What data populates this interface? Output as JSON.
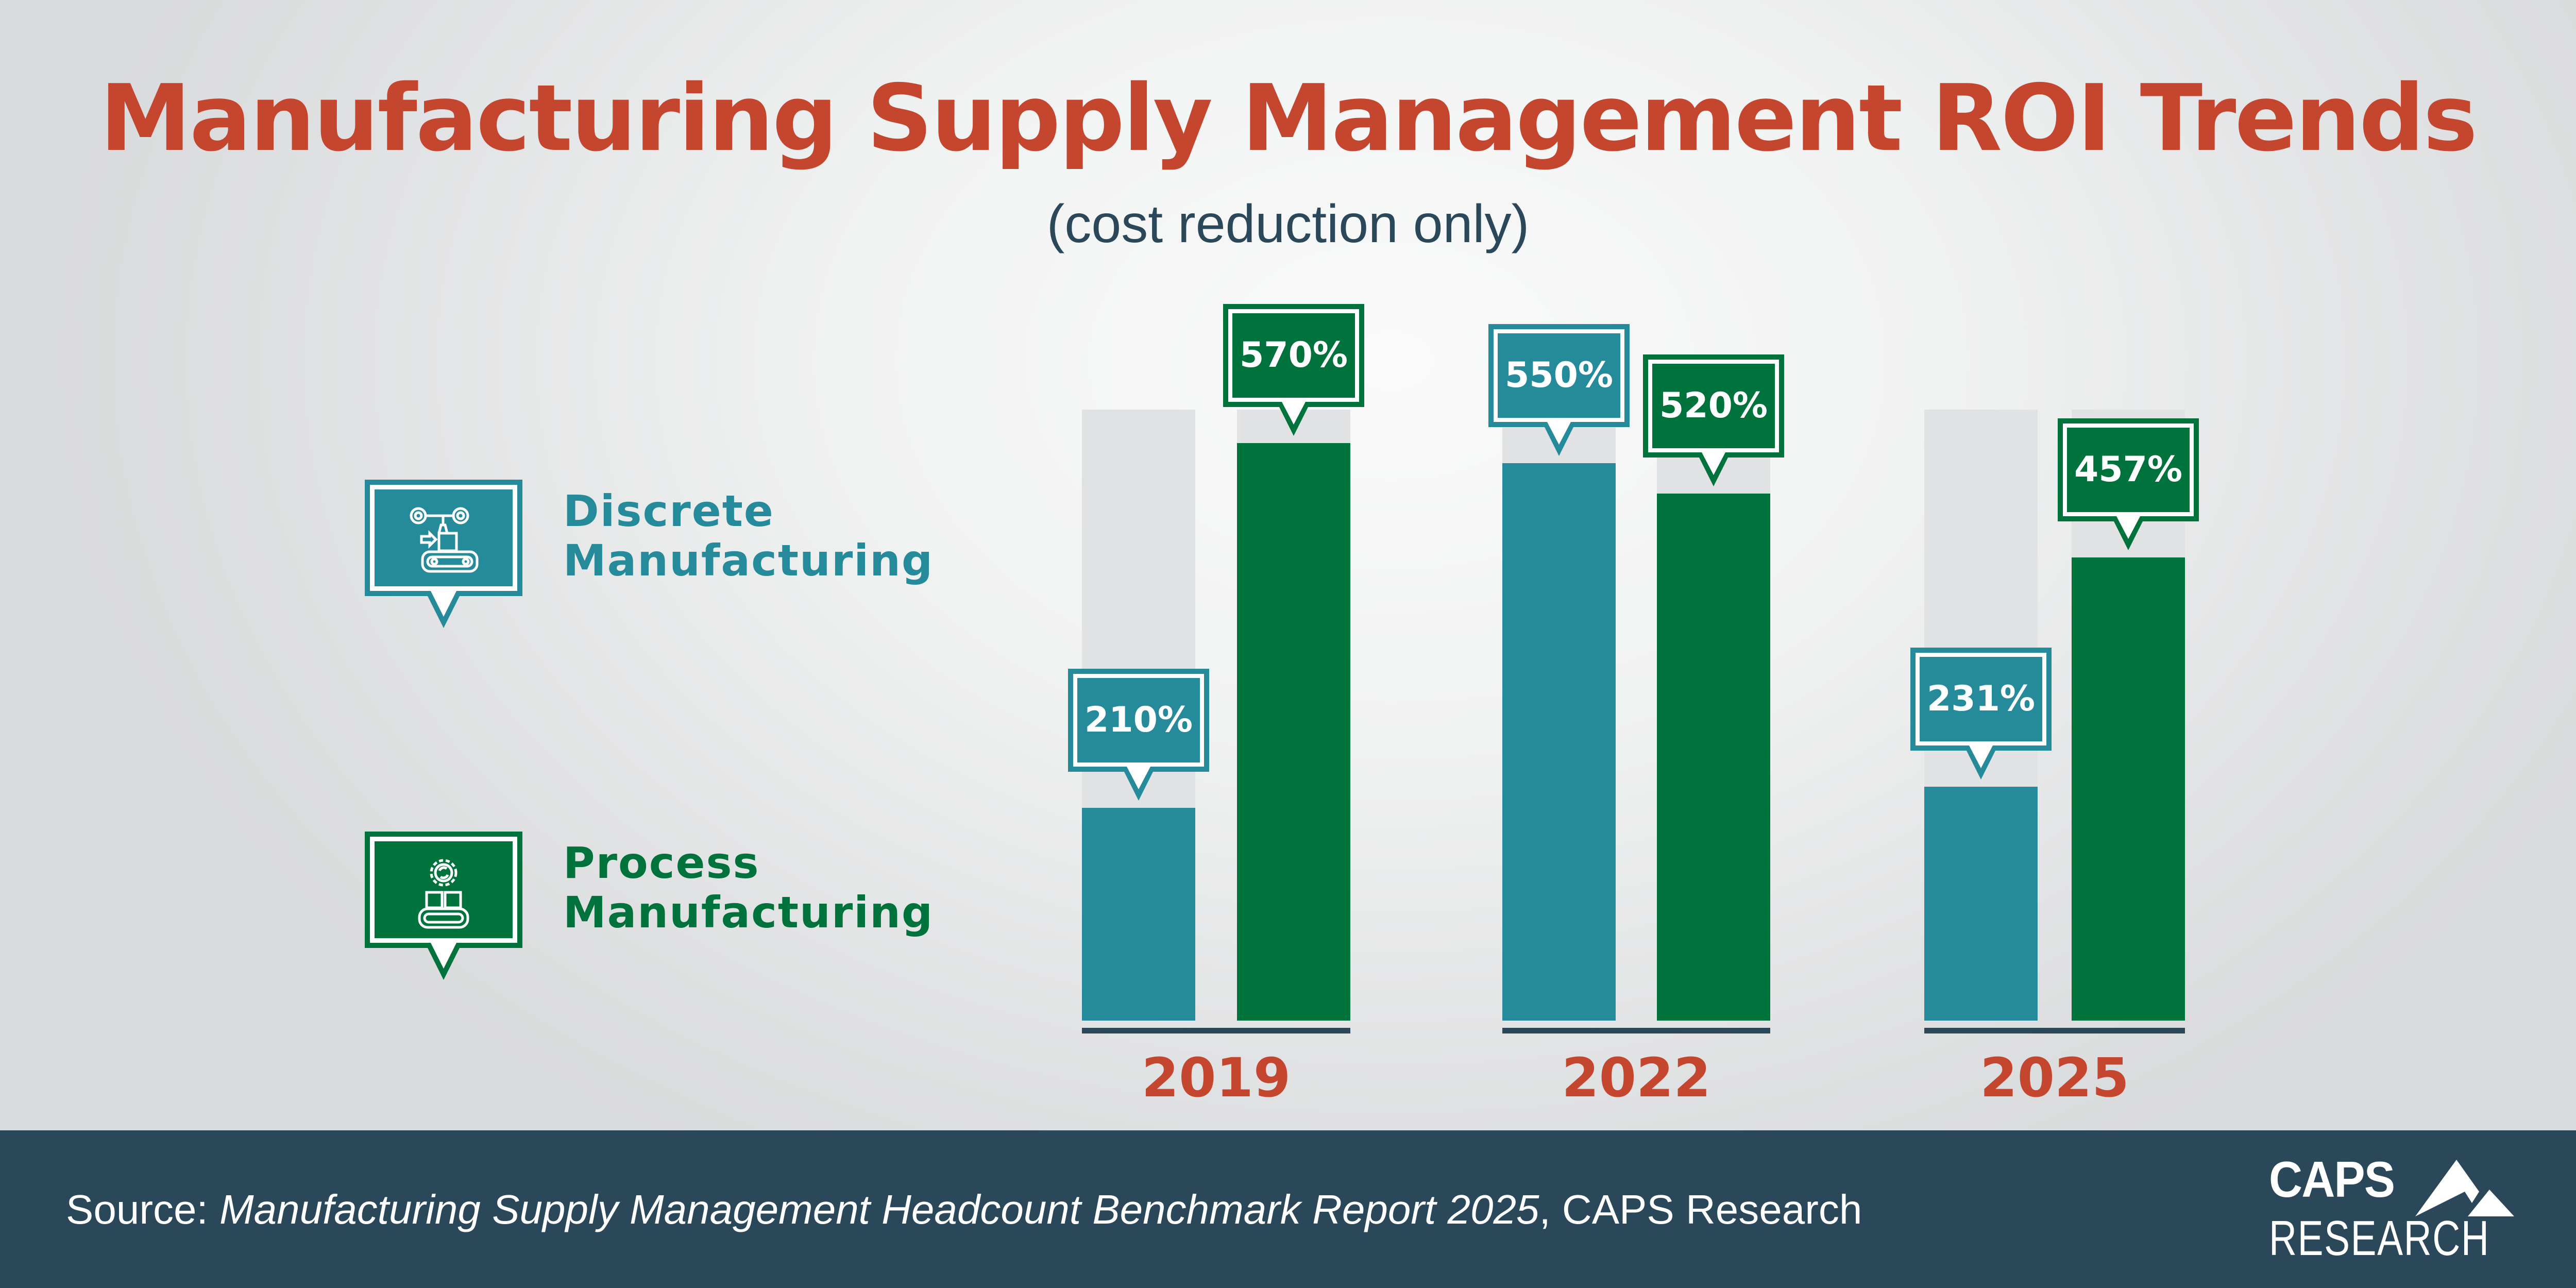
{
  "title": "Manufacturing Supply Management ROI Trends",
  "subtitle": "(cost reduction only)",
  "colors": {
    "title": "#c4462f",
    "discrete": "#258a9a",
    "process": "#00723b",
    "track": "#e1e2e4",
    "axis": "#2a4859",
    "footer": "#2a4859"
  },
  "legend": [
    {
      "line1": "Discrete",
      "line2": "Manufacturing",
      "icon": "robotic-arm-conveyor-icon"
    },
    {
      "line1": "Process",
      "line2": "Manufacturing",
      "icon": "gear-conveyor-icon"
    }
  ],
  "chart_data": {
    "type": "bar",
    "categories": [
      "2019",
      "2022",
      "2025"
    ],
    "series": [
      {
        "name": "Discrete Manufacturing",
        "values": [
          210,
          550,
          231
        ],
        "labels": [
          "210%",
          "550%",
          "231%"
        ]
      },
      {
        "name": "Process Manufacturing",
        "values": [
          570,
          520,
          457
        ],
        "labels": [
          "570%",
          "520%",
          "457%"
        ]
      }
    ],
    "unit": "%",
    "ylim": [
      0,
      603
    ],
    "grid": false,
    "legend_position": "left"
  },
  "footer": {
    "source_prefix": "Source: ",
    "source_title": "Manufacturing Supply Management Headcount Benchmark Report 2025",
    "source_suffix": ", CAPS Research",
    "logo_line1": "CAPS",
    "logo_line2": "RESEARCH"
  }
}
